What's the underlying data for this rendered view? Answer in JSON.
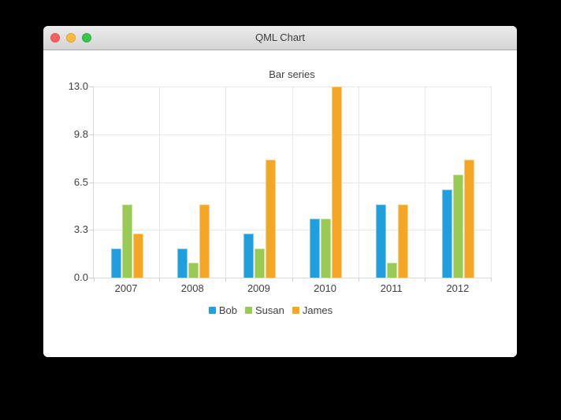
{
  "window": {
    "title": "QML Chart",
    "traffic_lights": {
      "close_color": "#fc615d",
      "minimize_color": "#fdbc40",
      "zoom_color": "#34c749"
    }
  },
  "chart_data": {
    "type": "bar",
    "title": "Bar series",
    "categories": [
      "2007",
      "2008",
      "2009",
      "2010",
      "2011",
      "2012"
    ],
    "series": [
      {
        "name": "Bob",
        "color": "#209fdf",
        "values": [
          2,
          2,
          3,
          4,
          5,
          6
        ]
      },
      {
        "name": "Susan",
        "color": "#99ca53",
        "values": [
          5,
          1,
          2,
          4,
          1,
          7
        ]
      },
      {
        "name": "James",
        "color": "#f6a625",
        "values": [
          3,
          5,
          8,
          13,
          5,
          8
        ]
      }
    ],
    "ylim": [
      0,
      13
    ],
    "y_tick_labels": [
      "13.0",
      "9.8",
      "6.5",
      "3.3",
      "0.0"
    ],
    "grid": true,
    "legend_position": "bottom",
    "legend_labels": [
      "Bob",
      "Susan",
      "James"
    ]
  },
  "theme": {
    "grid_color": "#e7e7e7",
    "axis_line_color": "#d9d9d9",
    "label_color": "#3f3f3f",
    "window_bg": "#ffffff",
    "desktop_bg": "#000000"
  }
}
